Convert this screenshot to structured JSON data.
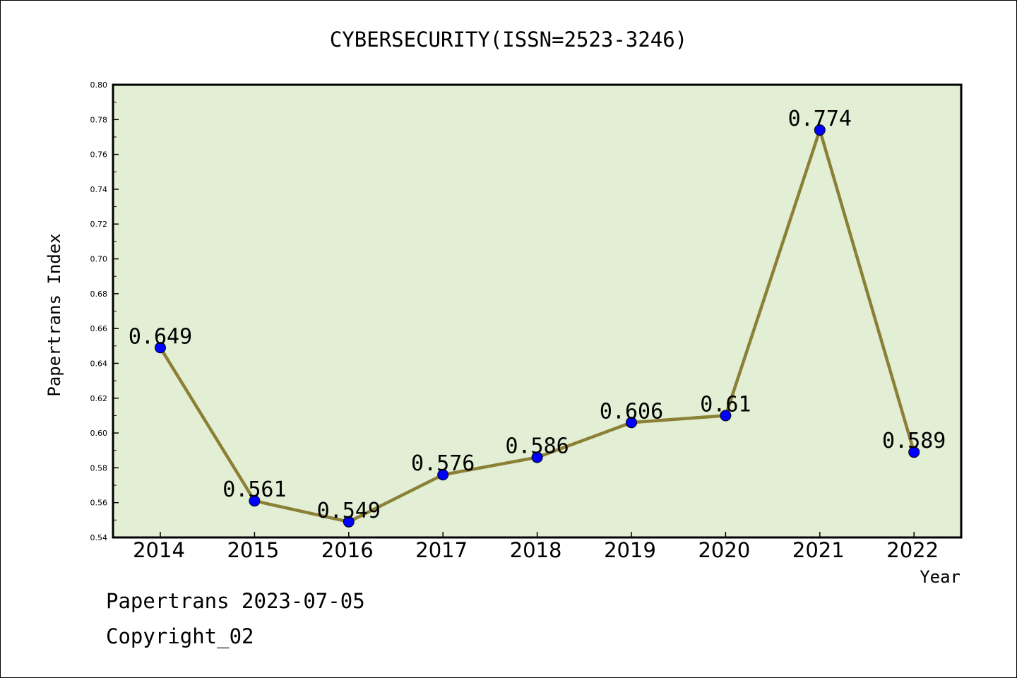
{
  "chart_data": {
    "type": "line",
    "title": "CYBERSECURITY(ISSN=2523-3246)",
    "xlabel": "Year",
    "ylabel": "Papertrans Index",
    "categories": [
      "2014",
      "2015",
      "2016",
      "2017",
      "2018",
      "2019",
      "2020",
      "2021",
      "2022"
    ],
    "series": [
      {
        "values": [
          0.649,
          0.561,
          0.549,
          0.576,
          0.586,
          0.606,
          0.61,
          0.774,
          0.589
        ],
        "data_labels": [
          "0.649",
          "0.561",
          "0.549",
          "0.576",
          "0.586",
          "0.606",
          "0.61",
          "0.774",
          "0.589"
        ]
      }
    ],
    "ylim": [
      0.54,
      0.8
    ],
    "yticks": [
      "0.54",
      "0.56",
      "0.58",
      "0.60",
      "0.62",
      "0.64",
      "0.66",
      "0.68",
      "0.70",
      "0.72",
      "0.74",
      "0.76",
      "0.78",
      "0.80"
    ],
    "grid": false,
    "legend": "none",
    "colors": {
      "plot_background": "#e2efd5",
      "line": "#8b8036",
      "marker": "#0000ff"
    }
  },
  "footer": {
    "line1": "Papertrans 2023-07-05",
    "line2": "Copyright_02"
  }
}
